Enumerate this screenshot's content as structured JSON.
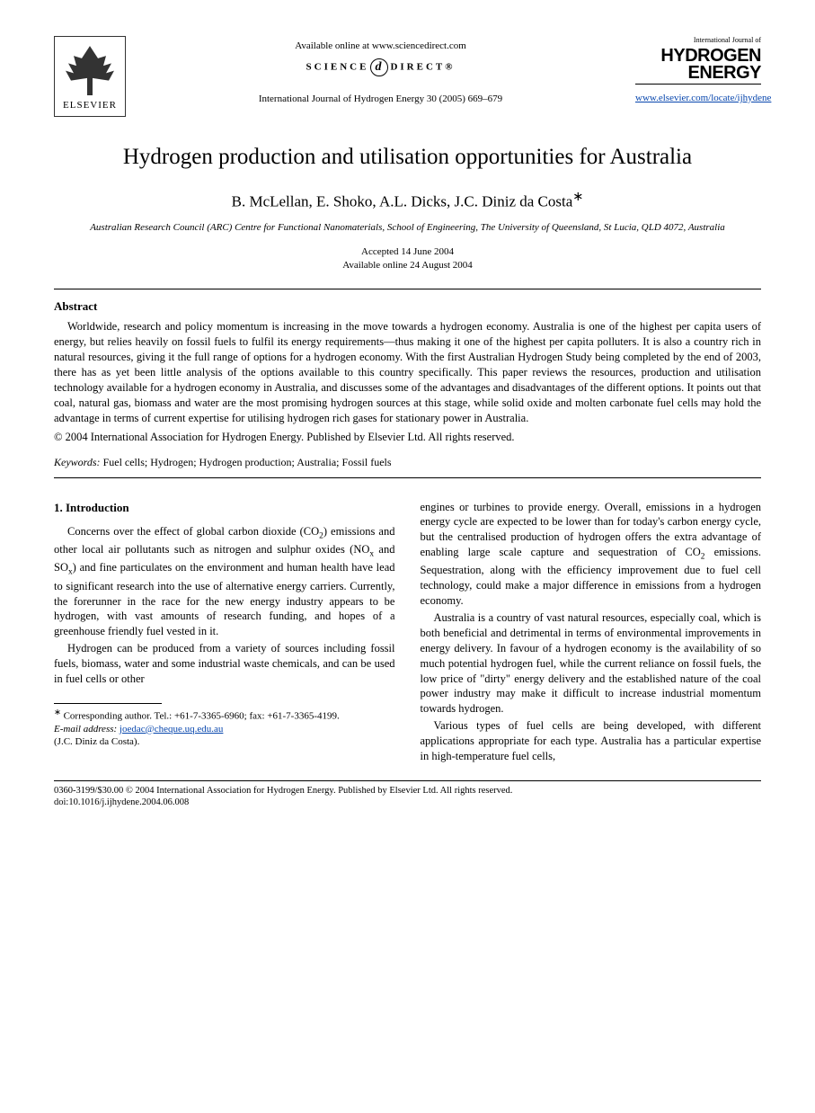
{
  "header": {
    "elsevier": "ELSEVIER",
    "available_online": "Available online at www.sciencedirect.com",
    "sciencedirect_pre": "SCIENCE",
    "sciencedirect_post": "DIRECT®",
    "journal_ref": "International Journal of Hydrogen Energy 30 (2005) 669–679",
    "journal_logo_top": "International Journal of",
    "journal_logo_line1": "HYDROGEN",
    "journal_logo_line2": "ENERGY",
    "journal_url": "www.elsevier.com/locate/ijhydene"
  },
  "title": "Hydrogen production and utilisation opportunities for Australia",
  "authors": "B. McLellan, E. Shoko, A.L. Dicks, J.C. Diniz da Costa",
  "author_marker": "∗",
  "affiliation": "Australian Research Council (ARC) Centre for Functional Nanomaterials, School of Engineering, The University of Queensland, St Lucia, QLD 4072, Australia",
  "dates": {
    "accepted": "Accepted 14 June 2004",
    "online": "Available online 24 August 2004"
  },
  "abstract": {
    "heading": "Abstract",
    "body": "Worldwide, research and policy momentum is increasing in the move towards a hydrogen economy. Australia is one of the highest per capita users of energy, but relies heavily on fossil fuels to fulfil its energy requirements—thus making it one of the highest per capita polluters. It is also a country rich in natural resources, giving it the full range of options for a hydrogen economy. With the first Australian Hydrogen Study being completed by the end of 2003, there has as yet been little analysis of the options available to this country specifically. This paper reviews the resources, production and utilisation technology available for a hydrogen economy in Australia, and discusses some of the advantages and disadvantages of the different options. It points out that coal, natural gas, biomass and water are the most promising hydrogen sources at this stage, while solid oxide and molten carbonate fuel cells may hold the advantage in terms of current expertise for utilising hydrogen rich gases for stationary power in Australia.",
    "copyright": "© 2004 International Association for Hydrogen Energy. Published by Elsevier Ltd. All rights reserved."
  },
  "keywords": {
    "label": "Keywords:",
    "list": "Fuel cells; Hydrogen; Hydrogen production; Australia; Fossil fuels"
  },
  "intro": {
    "heading": "1. Introduction",
    "left_p1_a": "Concerns over the effect of global carbon dioxide (CO",
    "left_p1_b": ") emissions and other local air pollutants such as nitrogen and sulphur oxides (NO",
    "left_p1_c": " and SO",
    "left_p1_d": ") and fine particulates on the environment and human health have lead to significant research into the use of alternative energy carriers. Currently, the forerunner in the race for the new energy industry appears to be hydrogen, with vast amounts of research funding, and hopes of a greenhouse friendly fuel vested in it.",
    "left_p2": "Hydrogen can be produced from a variety of sources including fossil fuels, biomass, water and some industrial waste chemicals, and can be used in fuel cells or other",
    "right_p1_a": "engines or turbines to provide energy. Overall, emissions in a hydrogen energy cycle are expected to be lower than for today's carbon energy cycle, but the centralised production of hydrogen offers the extra advantage of enabling large scale capture and sequestration of CO",
    "right_p1_b": " emissions. Sequestration, along with the efficiency improvement due to fuel cell technology, could make a major difference in emissions from a hydrogen economy.",
    "right_p2": "Australia is a country of vast natural resources, especially coal, which is both beneficial and detrimental in terms of environmental improvements in energy delivery. In favour of a hydrogen economy is the availability of so much potential hydrogen fuel, while the current reliance on fossil fuels, the low price of \"dirty\" energy delivery and the established nature of the coal power industry may make it difficult to increase industrial momentum towards hydrogen.",
    "right_p3": "Various types of fuel cells are being developed, with different applications appropriate for each type. Australia has a particular expertise in high-temperature fuel cells,"
  },
  "footnote": {
    "corr": "Corresponding author. Tel.: +61-7-3365-6960; fax: +61-7-3365-4199.",
    "email_label": "E-mail address:",
    "email": "joedac@cheque.uq.edu.au",
    "email_name": "(J.C. Diniz da Costa)."
  },
  "footer": {
    "line1": "0360-3199/$30.00 © 2004 International Association for Hydrogen Energy. Published by Elsevier Ltd. All rights reserved.",
    "line2": "doi:10.1016/j.ijhydene.2004.06.008"
  },
  "style": {
    "link_color": "#0645ad",
    "text_color": "#000000",
    "background": "#ffffff",
    "title_fontsize": 25,
    "author_fontsize": 17,
    "body_fontsize": 12.5,
    "header_fontsize": 11,
    "footnote_fontsize": 11,
    "footer_fontsize": 10.5
  }
}
